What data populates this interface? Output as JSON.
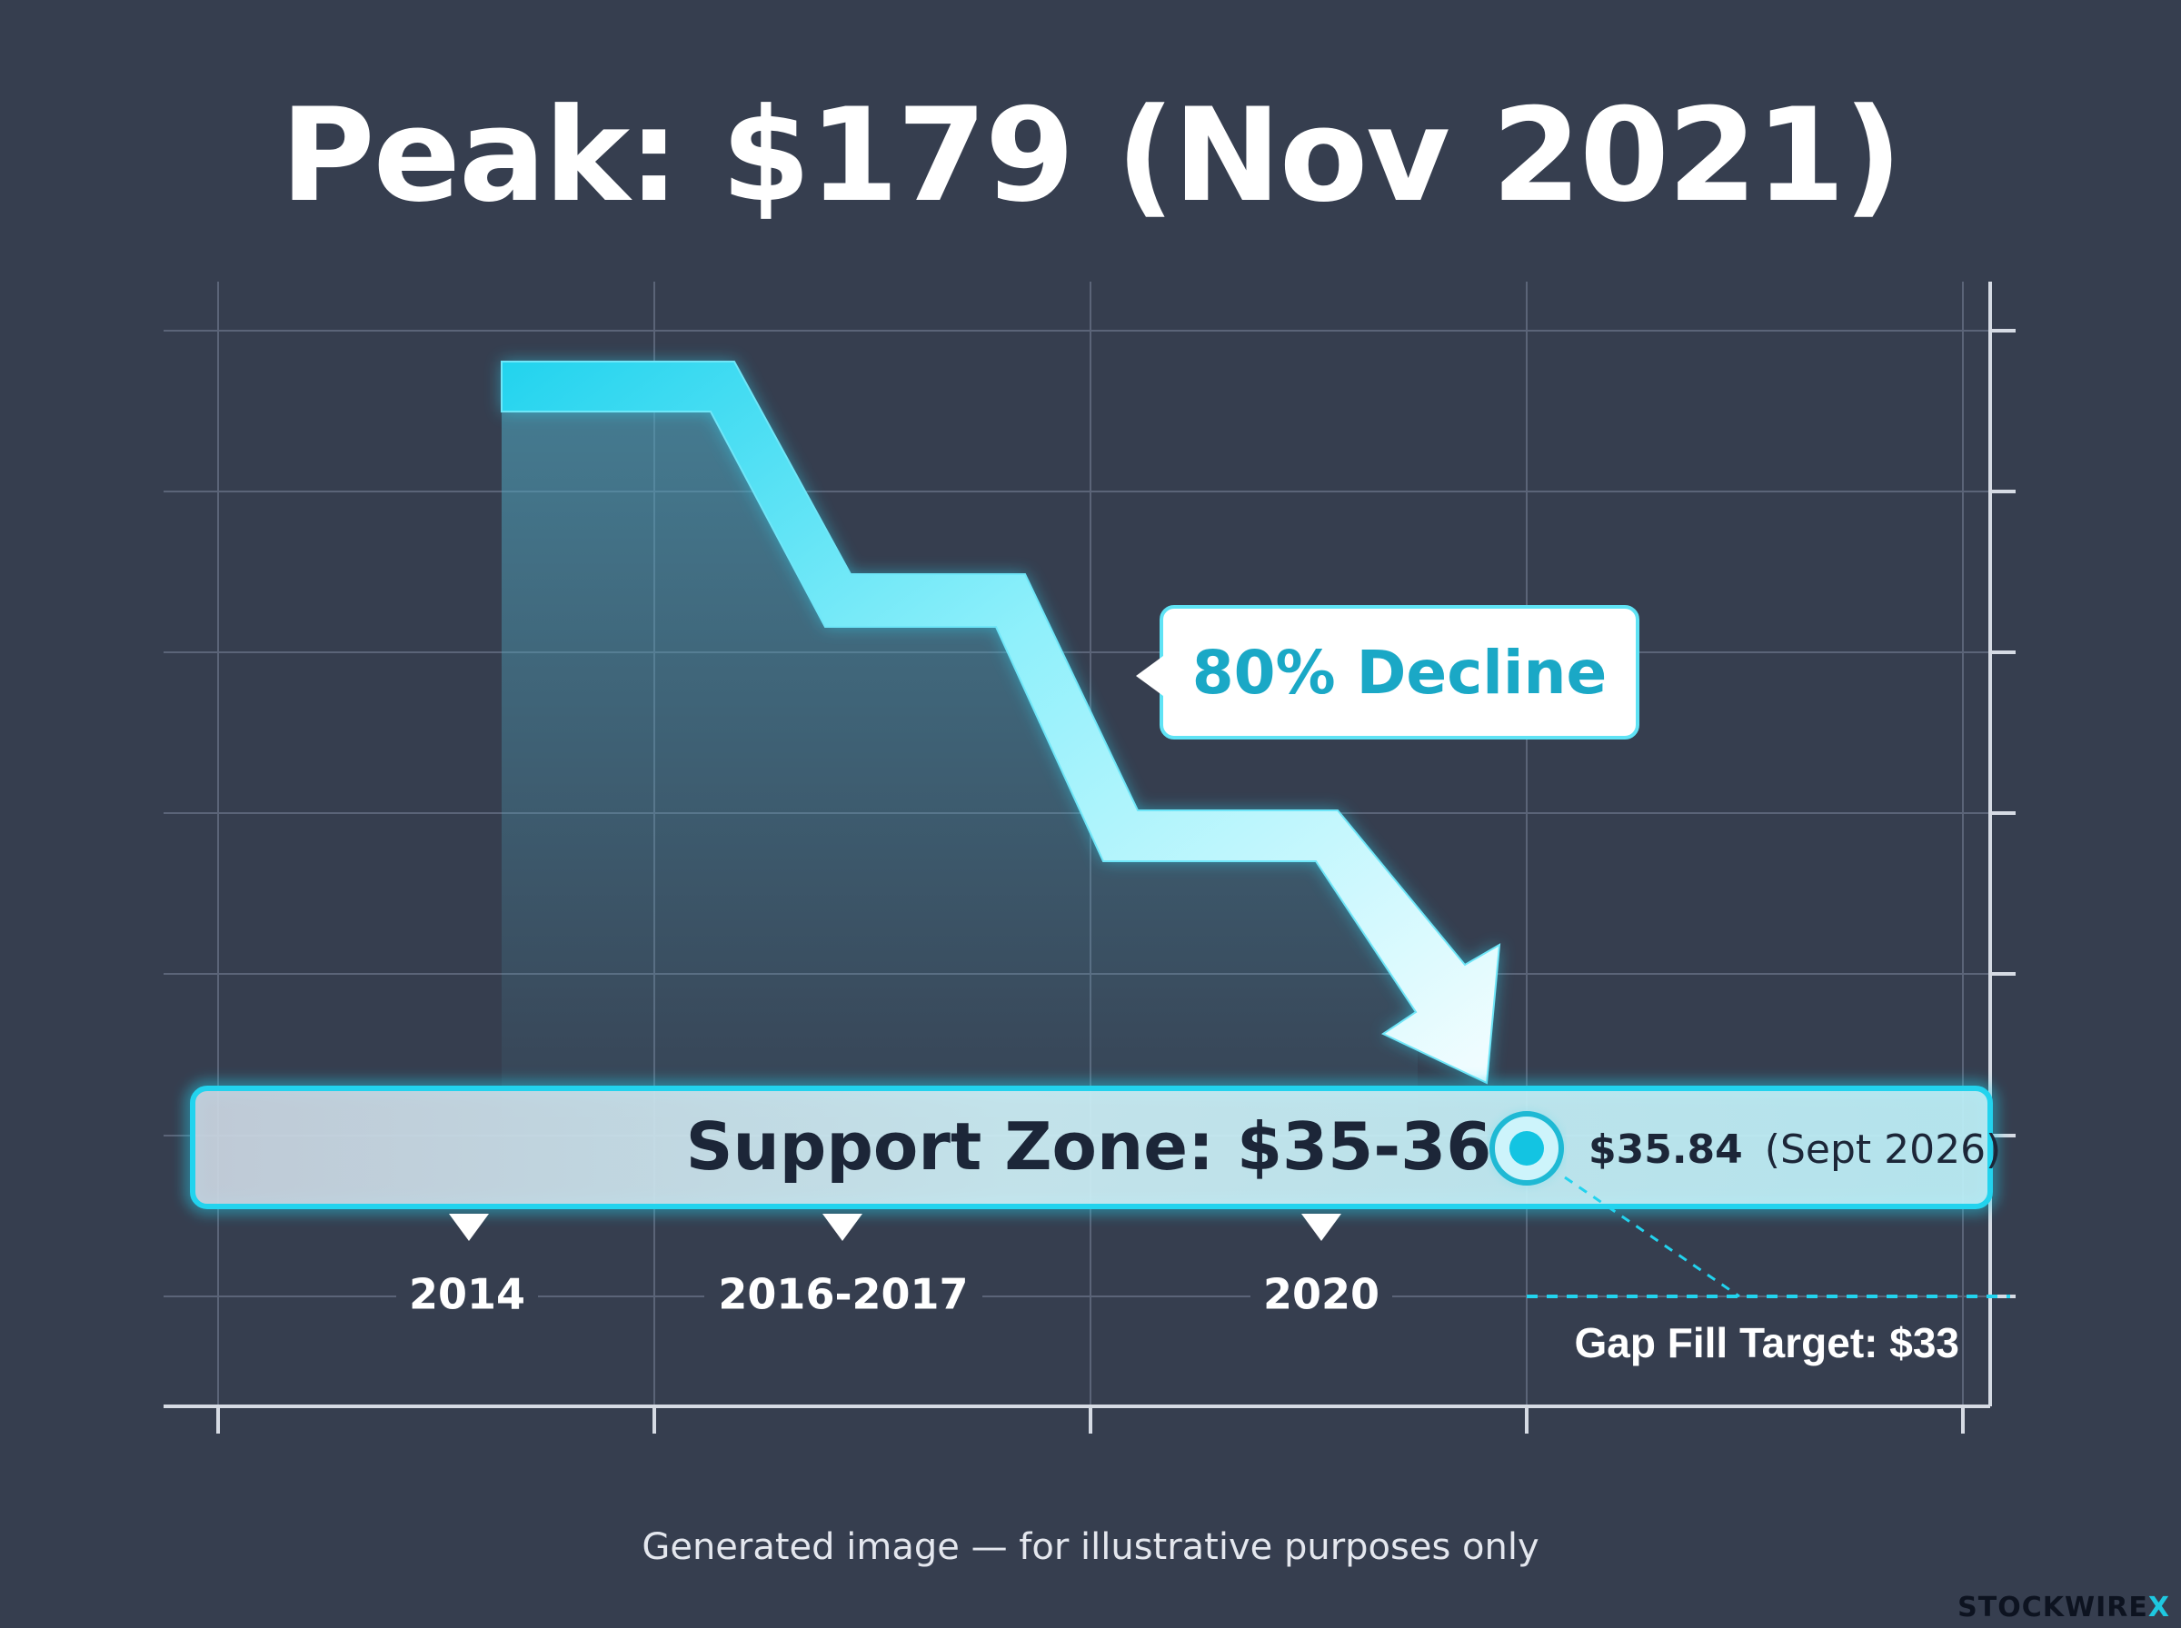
{
  "chart_data": {
    "type": "line",
    "title": "Peak: $179 (Nov 2021)",
    "x_labels": [
      "2014",
      "2016-2017",
      "2020"
    ],
    "series": [
      {
        "x": [
          "2014",
          "Nov 2021",
          "2016-2017",
          "2020",
          "Sept 2026"
        ],
        "values": [
          179,
          179,
          131,
          76,
          35.84
        ]
      }
    ],
    "annotations": {
      "decline": "80% Decline",
      "support_label": "Support Zone: $35-36",
      "support_range": [
        35,
        36
      ],
      "point_value": "$35.84",
      "point_date": "(Sept 2026)",
      "gap_fill": "Gap Fill Target: $33",
      "gap_fill_value": 33
    },
    "grid": true,
    "colors": {
      "line": "#34d6f0",
      "line_light": "#e6fbff",
      "support_border": "#22d3ee",
      "accent_text": "#1aa8c6",
      "dark_text": "#1c2638"
    }
  },
  "footer": {
    "note": "Generated image — for illustrative purposes only",
    "brand_main": "STOCKWIRE",
    "brand_x": "X"
  }
}
